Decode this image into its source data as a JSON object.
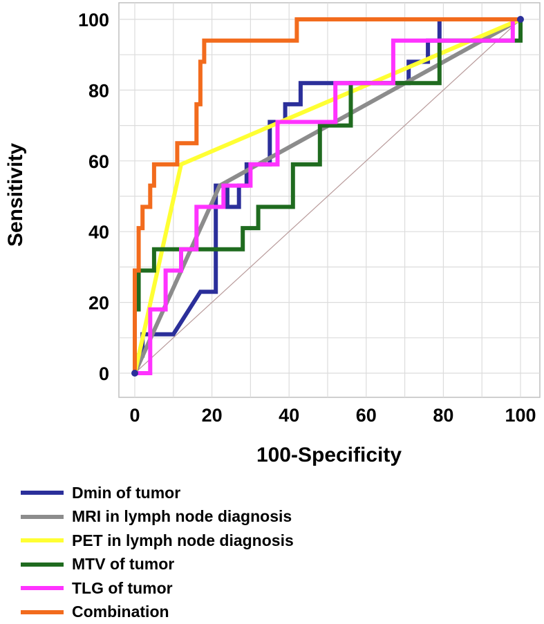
{
  "chart_data": {
    "type": "line",
    "title": "",
    "xlabel": "100-Specificity",
    "ylabel": "Sensitivity",
    "xlim": [
      0,
      100
    ],
    "ylim": [
      0,
      100
    ],
    "xticks": [
      "0",
      "20",
      "40",
      "60",
      "80",
      "100"
    ],
    "yticks": [
      "0",
      "20",
      "40",
      "60",
      "80",
      "100"
    ],
    "grid": true,
    "reference_line": {
      "x": [
        0,
        100
      ],
      "y": [
        0,
        100
      ],
      "color": "#b89a9a"
    },
    "series": [
      {
        "name": "Dmin of tumor",
        "color": "#2b2f9a",
        "x": [
          0,
          0,
          2,
          2,
          4,
          4,
          10,
          10,
          17,
          17,
          21,
          21,
          24,
          24,
          27,
          27,
          29,
          29,
          35,
          35,
          39,
          39,
          43,
          43,
          53,
          53,
          61,
          61,
          71,
          71,
          76,
          76,
          79,
          79,
          100
        ],
        "y": [
          0,
          5,
          5,
          11,
          11,
          11,
          11,
          11,
          23,
          23,
          23,
          53,
          53,
          47,
          47,
          53,
          53,
          59,
          59,
          71,
          71,
          76,
          76,
          82,
          82,
          82,
          82,
          82,
          82,
          88,
          88,
          94,
          94,
          100,
          100
        ]
      },
      {
        "name": "MRI in lymph node diagnosis",
        "color": "#8c8c8c",
        "x": [
          0,
          22,
          100
        ],
        "y": [
          0,
          53,
          100
        ]
      },
      {
        "name": "PET in lymph node diagnosis",
        "color": "#ffff33",
        "x": [
          0,
          12,
          100
        ],
        "y": [
          0,
          59,
          100
        ]
      },
      {
        "name": "MTV of tumor",
        "color": "#1f6b1f",
        "x": [
          0,
          0,
          1,
          1,
          1,
          1,
          5,
          5,
          28,
          28,
          32,
          32,
          41,
          41,
          48,
          48,
          56,
          56,
          67,
          67,
          79,
          79,
          97,
          97,
          100,
          100
        ],
        "y": [
          0,
          18,
          18,
          29,
          29,
          29,
          29,
          35,
          35,
          41,
          41,
          47,
          47,
          59,
          59,
          70,
          70,
          82,
          82,
          82,
          82,
          94,
          94,
          94,
          94,
          100
        ]
      },
      {
        "name": "TLG of tumor",
        "color": "#ff33ff",
        "x": [
          0,
          4,
          4,
          4,
          8,
          8,
          12,
          12,
          16,
          16,
          23,
          23,
          30,
          30,
          37,
          37,
          52,
          52,
          67,
          67,
          98,
          98,
          100
        ],
        "y": [
          0,
          0,
          18,
          18,
          18,
          29,
          29,
          35,
          35,
          47,
          47,
          53,
          53,
          59,
          59,
          71,
          71,
          82,
          82,
          94,
          94,
          100,
          100
        ]
      },
      {
        "name": "Combination",
        "color": "#f26b1d",
        "x": [
          0,
          0,
          1,
          1,
          2,
          2,
          4,
          4,
          5,
          5,
          8,
          8,
          11,
          11,
          16,
          16,
          17,
          17,
          18,
          18,
          42,
          42,
          100
        ],
        "y": [
          0,
          29,
          29,
          41,
          41,
          47,
          47,
          53,
          53,
          59,
          59,
          59,
          59,
          65,
          65,
          76,
          76,
          88,
          88,
          94,
          94,
          100,
          100
        ]
      }
    ]
  }
}
